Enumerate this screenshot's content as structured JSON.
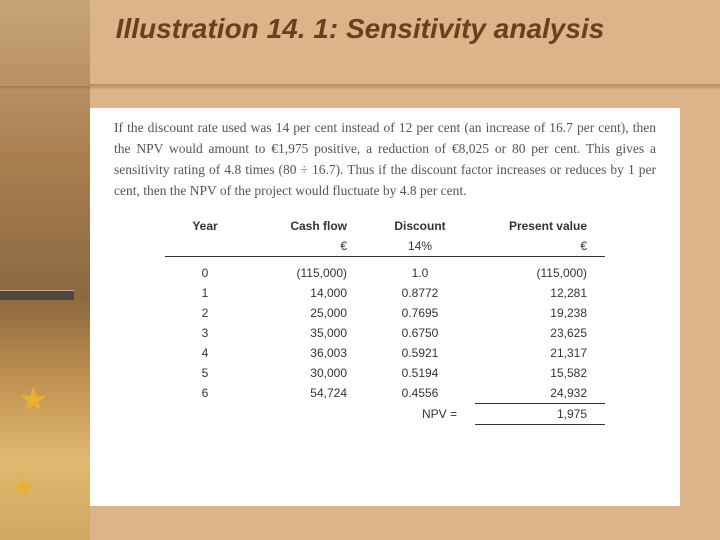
{
  "title": "Illustration 14. 1: Sensitivity analysis",
  "paragraph": "If the discount rate used was 14 per cent instead of 12 per cent (an increase of 16.7 per cent), then the NPV would amount to €1,975 positive, a reduction of €8,025 or 80 per cent. This gives a sensitivity rating of 4.8 times (80 ÷ 16.7). Thus if the discount factor increases or reduces by 1 per cent, then the NPV of the project would fluctuate by 4.8 per cent.",
  "table": {
    "headers": {
      "year": "Year",
      "cashflow": "Cash flow",
      "discount": "Discount",
      "pv": "Present value"
    },
    "subheaders": {
      "cashflow": "€",
      "discount": "14%",
      "pv": "€"
    },
    "rows": [
      {
        "year": "0",
        "cashflow": "(115,000)",
        "discount": "1.0",
        "pv": "(115,000)"
      },
      {
        "year": "1",
        "cashflow": "14,000",
        "discount": "0.8772",
        "pv": "12,281"
      },
      {
        "year": "2",
        "cashflow": "25,000",
        "discount": "0.7695",
        "pv": "19,238"
      },
      {
        "year": "3",
        "cashflow": "35,000",
        "discount": "0.6750",
        "pv": "23,625"
      },
      {
        "year": "4",
        "cashflow": "36,003",
        "discount": "0.5921",
        "pv": "21,317"
      },
      {
        "year": "5",
        "cashflow": "30,000",
        "discount": "0.5194",
        "pv": "15,582"
      },
      {
        "year": "6",
        "cashflow": "54,724",
        "discount": "0.4556",
        "pv": "24,932"
      }
    ],
    "npv_label": "NPV =",
    "npv_value": "1,975"
  },
  "colors": {
    "page_bg": "#dcb48a",
    "title_color": "#6b3f1a",
    "card_bg": "#ffffff",
    "text_color": "#555555"
  }
}
